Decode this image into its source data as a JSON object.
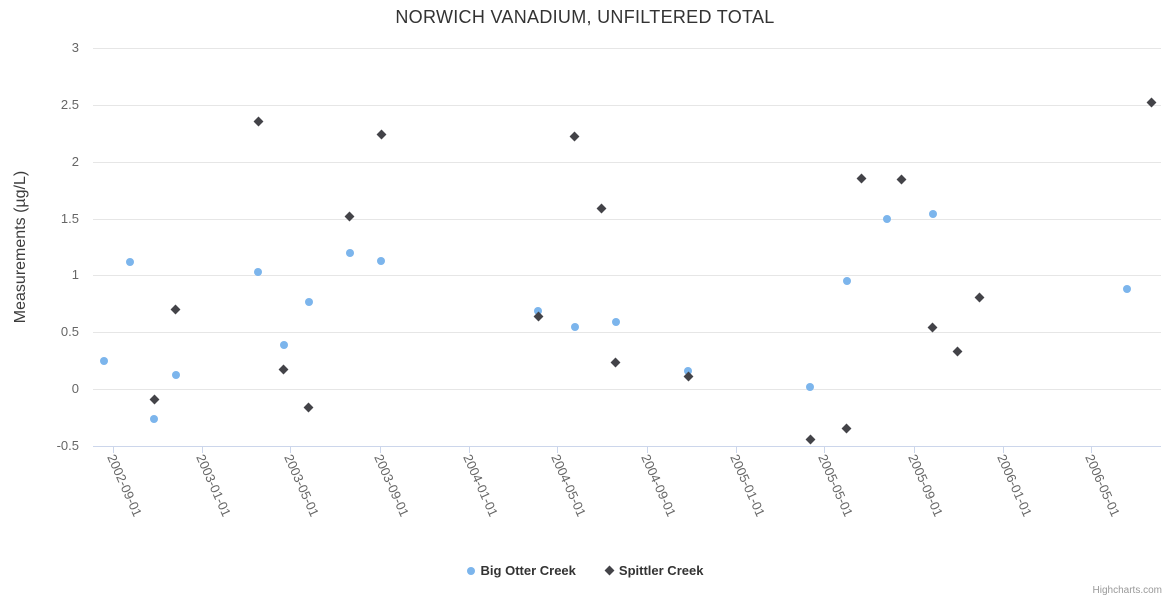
{
  "credit": "Highcharts.com",
  "chart_data": {
    "type": "scatter",
    "title": "NORWICH VANADIUM, UNFILTERED TOTAL",
    "xlabel": "",
    "ylabel": "Measurements (µg/L)",
    "ylim": [
      -0.5,
      3
    ],
    "y_ticks": [
      3,
      2.5,
      2,
      1.5,
      1,
      0.5,
      0,
      -0.5
    ],
    "x_ticks": [
      "2002-09-01",
      "2003-01-01",
      "2003-05-01",
      "2003-09-01",
      "2004-01-01",
      "2004-05-01",
      "2004-09-01",
      "2005-01-01",
      "2005-05-01",
      "2005-09-01",
      "2006-01-01",
      "2006-05-01"
    ],
    "x_range": [
      "2002-08-05",
      "2006-08-05"
    ],
    "grid": "horizontal",
    "legend_position": "bottom-center",
    "series": [
      {
        "name": "Big Otter Creek",
        "marker": "circle",
        "color": "#7cb5ec",
        "points": [
          {
            "date": "2002-08-20",
            "value": 0.25
          },
          {
            "date": "2002-09-25",
            "value": 1.12
          },
          {
            "date": "2002-10-28",
            "value": -0.26
          },
          {
            "date": "2002-11-26",
            "value": 0.12
          },
          {
            "date": "2003-03-19",
            "value": 1.03
          },
          {
            "date": "2003-04-23",
            "value": 0.39
          },
          {
            "date": "2003-05-27",
            "value": 0.77
          },
          {
            "date": "2003-07-22",
            "value": 1.2
          },
          {
            "date": "2003-09-03",
            "value": 1.13
          },
          {
            "date": "2004-04-05",
            "value": 0.69
          },
          {
            "date": "2004-05-25",
            "value": 0.55
          },
          {
            "date": "2004-07-20",
            "value": 0.59
          },
          {
            "date": "2004-10-27",
            "value": 0.16
          },
          {
            "date": "2005-04-12",
            "value": 0.02
          },
          {
            "date": "2005-06-01",
            "value": 0.95
          },
          {
            "date": "2005-07-26",
            "value": 1.5
          },
          {
            "date": "2005-09-27",
            "value": 1.54
          },
          {
            "date": "2006-06-20",
            "value": 0.88
          }
        ]
      },
      {
        "name": "Spittler Creek",
        "marker": "diamond",
        "color": "#434348",
        "points": [
          {
            "date": "2002-10-28",
            "value": -0.09
          },
          {
            "date": "2002-11-26",
            "value": 0.7
          },
          {
            "date": "2003-03-19",
            "value": 2.35
          },
          {
            "date": "2003-04-23",
            "value": 0.17
          },
          {
            "date": "2003-05-27",
            "value": -0.16
          },
          {
            "date": "2003-07-22",
            "value": 1.52
          },
          {
            "date": "2003-09-03",
            "value": 2.24
          },
          {
            "date": "2004-04-05",
            "value": 0.64
          },
          {
            "date": "2004-05-25",
            "value": 2.22
          },
          {
            "date": "2004-06-30",
            "value": 1.59
          },
          {
            "date": "2004-07-20",
            "value": 0.23
          },
          {
            "date": "2004-10-27",
            "value": 0.11
          },
          {
            "date": "2005-04-12",
            "value": -0.44
          },
          {
            "date": "2005-06-01",
            "value": -0.35
          },
          {
            "date": "2005-06-21",
            "value": 1.85
          },
          {
            "date": "2005-08-15",
            "value": 1.84
          },
          {
            "date": "2005-09-27",
            "value": 0.54
          },
          {
            "date": "2005-10-31",
            "value": 0.33
          },
          {
            "date": "2005-11-30",
            "value": 0.81
          },
          {
            "date": "2006-07-23",
            "value": 2.52
          }
        ]
      }
    ]
  }
}
